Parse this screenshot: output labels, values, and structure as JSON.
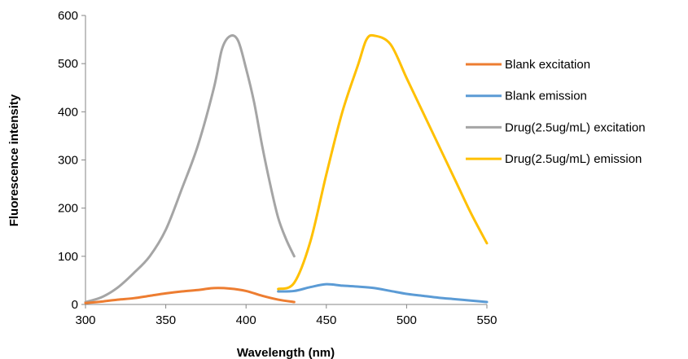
{
  "chart_data": {
    "type": "line",
    "title": "",
    "xlabel": "Wavelength (nm)",
    "ylabel": "Fluorescence intensity",
    "xlim": [
      300,
      550
    ],
    "ylim": [
      0,
      600
    ],
    "x_ticks": [
      300,
      350,
      400,
      450,
      500,
      550
    ],
    "y_ticks": [
      0,
      100,
      200,
      300,
      400,
      500,
      600
    ],
    "grid": false,
    "legend_position": "right",
    "series": [
      {
        "name": "Blank excitation",
        "color": "#ED7D31",
        "points": [
          [
            300,
            3
          ],
          [
            310,
            6
          ],
          [
            320,
            10
          ],
          [
            330,
            13
          ],
          [
            340,
            18
          ],
          [
            350,
            23
          ],
          [
            360,
            27
          ],
          [
            370,
            30
          ],
          [
            380,
            34
          ],
          [
            390,
            33
          ],
          [
            400,
            28
          ],
          [
            410,
            18
          ],
          [
            420,
            10
          ],
          [
            430,
            5
          ]
        ]
      },
      {
        "name": "Blank emission",
        "color": "#5B9BD5",
        "points": [
          [
            420,
            27
          ],
          [
            430,
            28
          ],
          [
            440,
            36
          ],
          [
            450,
            42
          ],
          [
            460,
            39
          ],
          [
            470,
            37
          ],
          [
            480,
            34
          ],
          [
            490,
            28
          ],
          [
            500,
            22
          ],
          [
            510,
            18
          ],
          [
            520,
            14
          ],
          [
            530,
            11
          ],
          [
            540,
            8
          ],
          [
            550,
            5
          ]
        ]
      },
      {
        "name": "Drug(2.5ug/mL) excitation",
        "color": "#A5A5A5",
        "points": [
          [
            300,
            5
          ],
          [
            310,
            15
          ],
          [
            320,
            35
          ],
          [
            330,
            65
          ],
          [
            340,
            100
          ],
          [
            350,
            155
          ],
          [
            360,
            240
          ],
          [
            370,
            330
          ],
          [
            380,
            450
          ],
          [
            385,
            530
          ],
          [
            390,
            557
          ],
          [
            395,
            548
          ],
          [
            400,
            490
          ],
          [
            405,
            420
          ],
          [
            410,
            330
          ],
          [
            415,
            250
          ],
          [
            420,
            180
          ],
          [
            425,
            135
          ],
          [
            430,
            100
          ]
        ]
      },
      {
        "name": "Drug(2.5ug/mL) emission",
        "color": "#FFC000",
        "points": [
          [
            420,
            32
          ],
          [
            430,
            45
          ],
          [
            440,
            130
          ],
          [
            450,
            270
          ],
          [
            460,
            400
          ],
          [
            470,
            500
          ],
          [
            475,
            550
          ],
          [
            480,
            558
          ],
          [
            490,
            540
          ],
          [
            500,
            470
          ],
          [
            510,
            400
          ],
          [
            520,
            330
          ],
          [
            530,
            260
          ],
          [
            540,
            190
          ],
          [
            550,
            127
          ]
        ]
      }
    ]
  }
}
